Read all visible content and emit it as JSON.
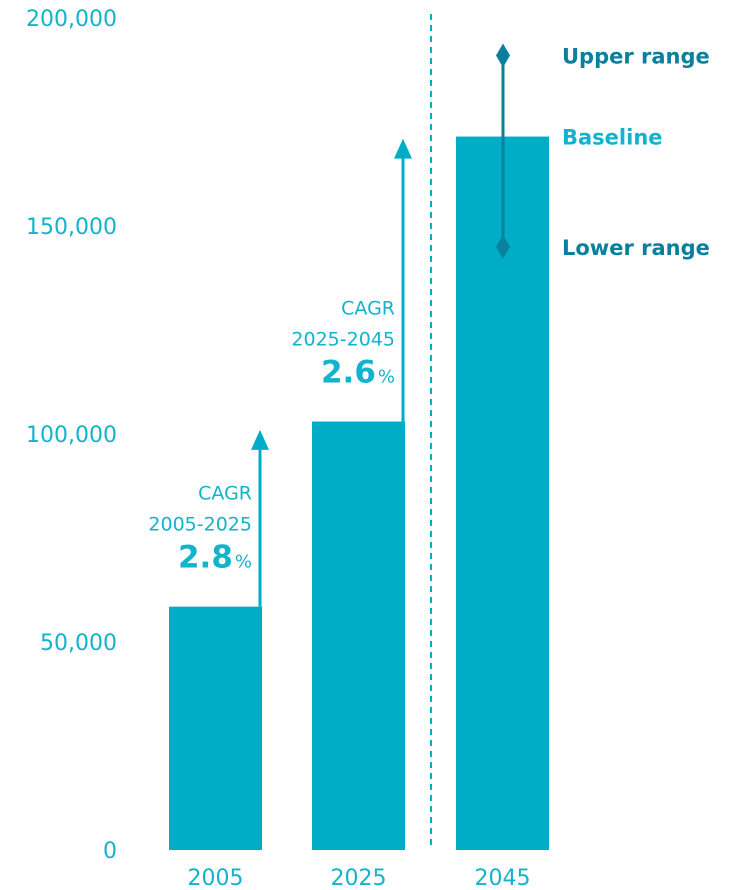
{
  "colors": {
    "bar": "#00adc6",
    "text": "#12b3cc",
    "range": "#0b7f9e",
    "divider": "#00adc6"
  },
  "chart_data": {
    "type": "bar",
    "categories": [
      "2005",
      "2025",
      "2045"
    ],
    "values": [
      58500,
      103000,
      171500
    ],
    "ylim": [
      0,
      200000
    ],
    "yticks": [
      {
        "value": 0,
        "label": "0"
      },
      {
        "value": 50000,
        "label": "50,000"
      },
      {
        "value": 100000,
        "label": "100,000"
      },
      {
        "value": 150000,
        "label": "150,000"
      },
      {
        "value": 200000,
        "label": "200,000"
      }
    ],
    "grid": false,
    "range_2045": {
      "upper": 191000,
      "baseline": 171500,
      "lower": 145000,
      "upper_label": "Upper range",
      "baseline_label": "Baseline",
      "lower_label": "Lower range"
    },
    "growth_annotations": [
      {
        "from": "2005",
        "line1": "CAGR",
        "line2": "2005-2025",
        "value": "2.8",
        "unit": "%",
        "target": 101000
      },
      {
        "from": "2025",
        "line1": "CAGR",
        "line2": "2025-2045",
        "value": "2.6",
        "unit": "%",
        "target": 171000
      }
    ],
    "divider_between": [
      "2025",
      "2045"
    ]
  }
}
